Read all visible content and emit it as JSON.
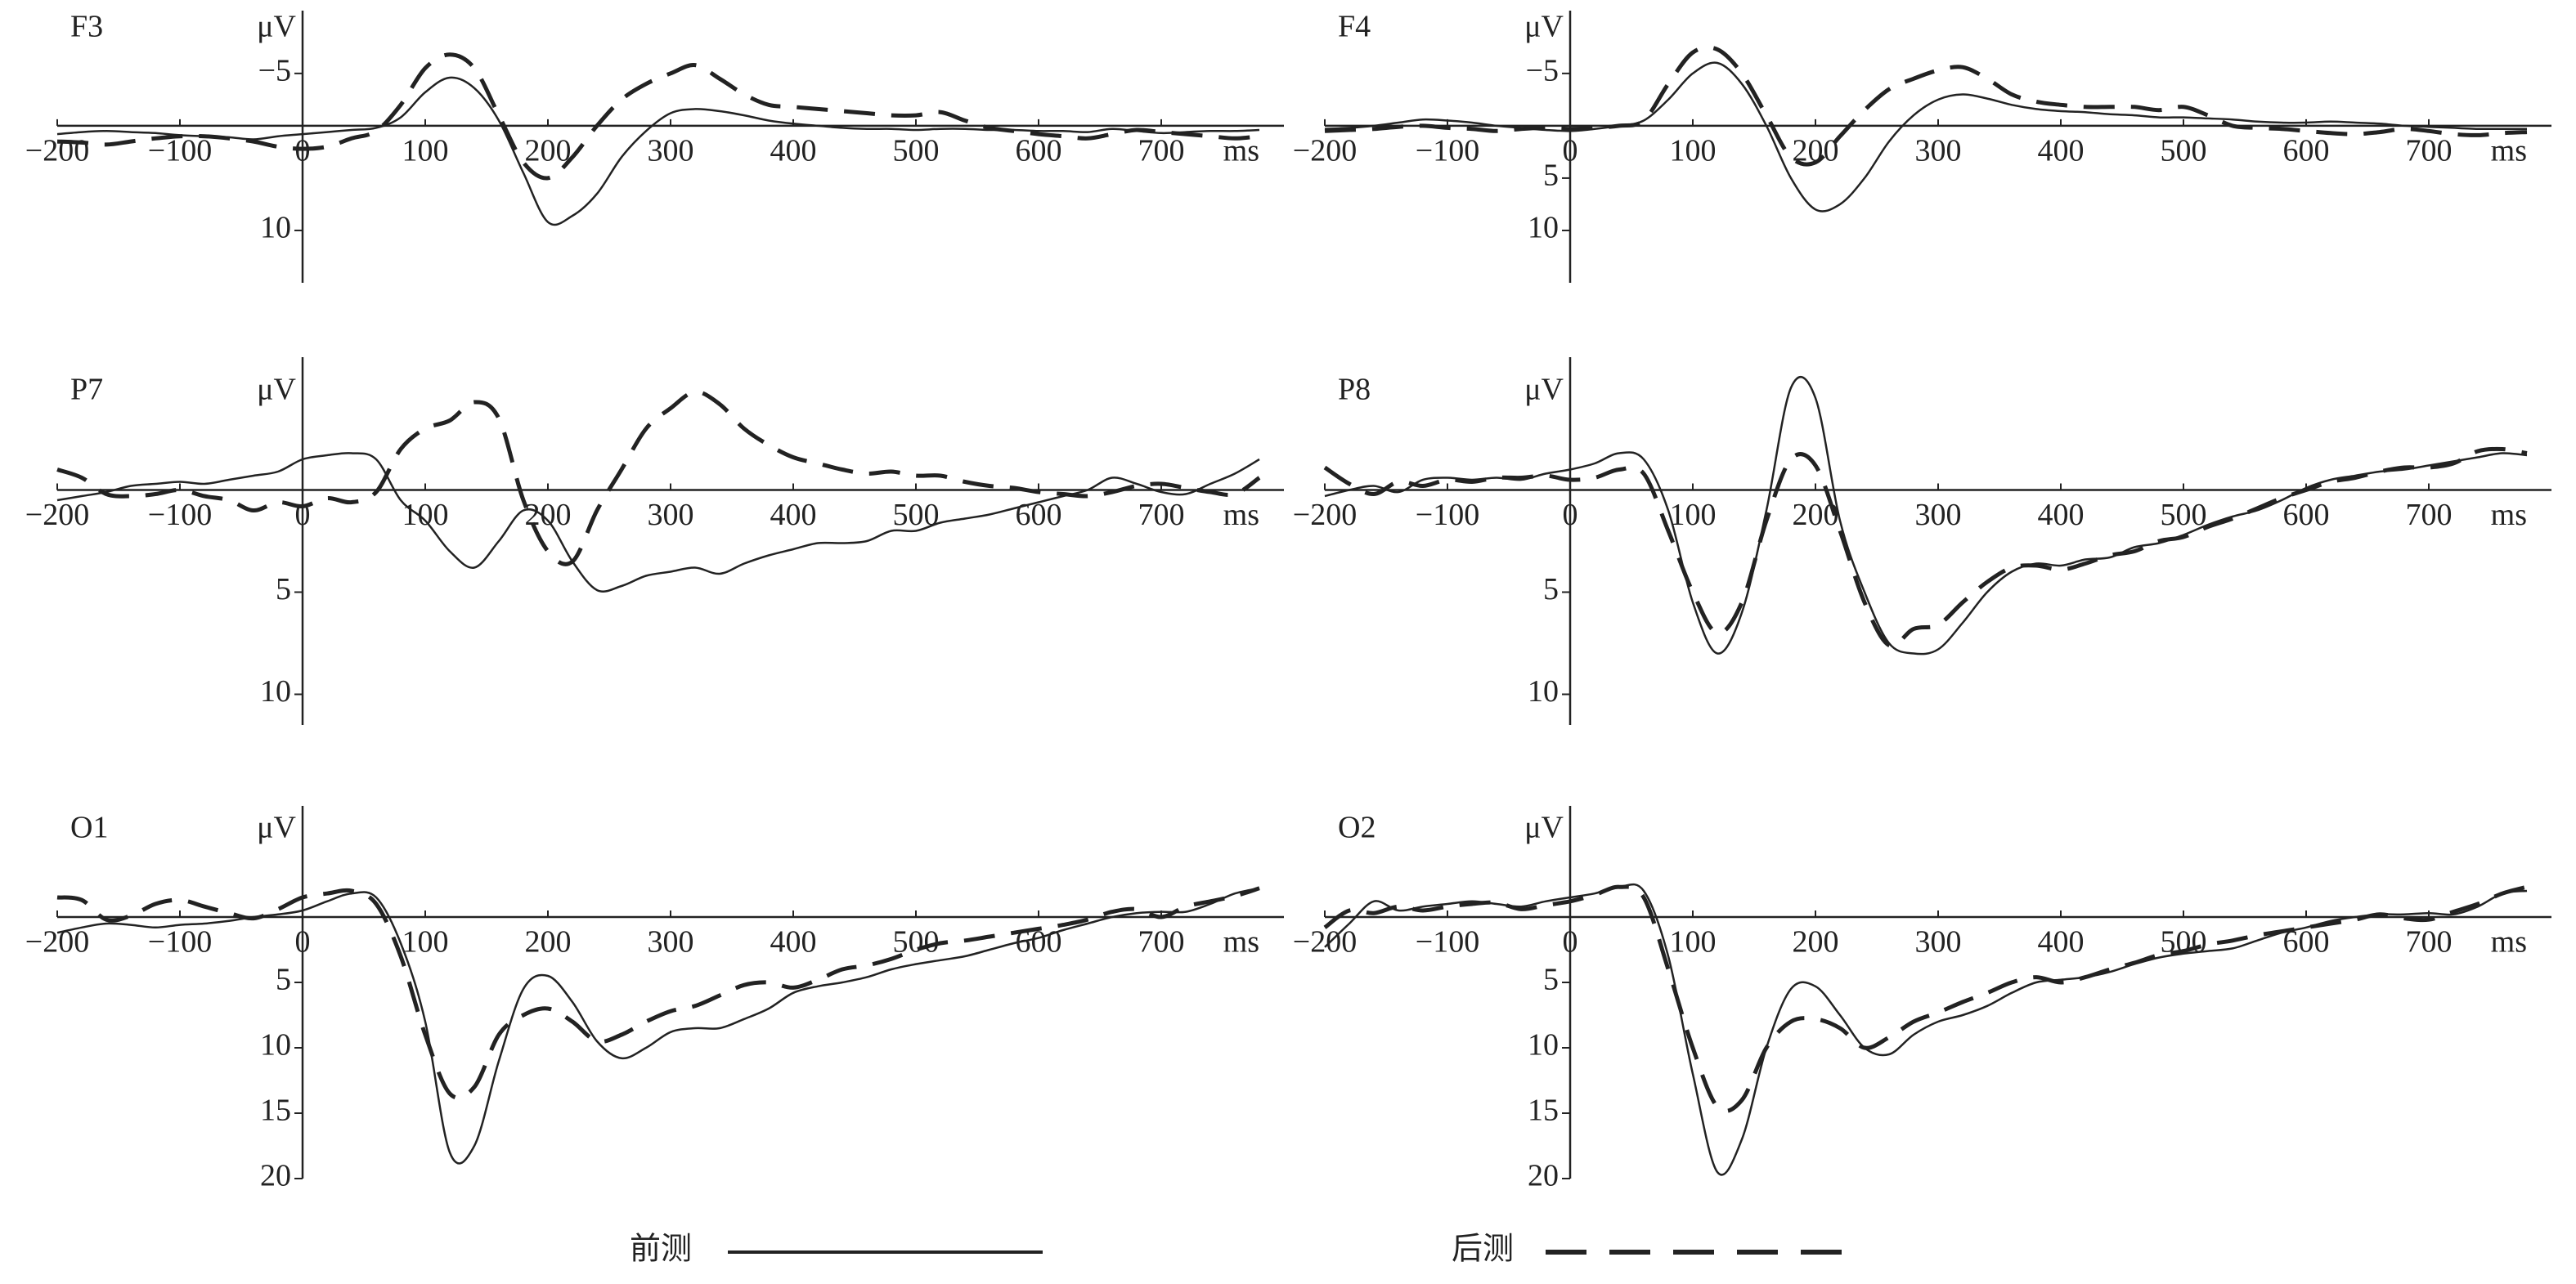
{
  "chart_data": [
    {
      "type": "line",
      "title": "F3",
      "y_label": "μV",
      "x_label": "ms",
      "y_reversed": true,
      "x": [
        -200,
        -180,
        -160,
        -140,
        -120,
        -100,
        -80,
        -60,
        -40,
        -20,
        0,
        20,
        40,
        60,
        80,
        100,
        120,
        140,
        160,
        180,
        200,
        220,
        240,
        260,
        280,
        300,
        320,
        340,
        360,
        380,
        400,
        420,
        440,
        460,
        480,
        500,
        520,
        540,
        560,
        580,
        600,
        620,
        640,
        660,
        680,
        700,
        720,
        740,
        760,
        780
      ],
      "xlim": [
        -200,
        800
      ],
      "xticks": [
        {
          "value": -200,
          "label": "−200"
        },
        {
          "value": -100,
          "label": "−100"
        },
        0,
        100,
        200,
        300,
        400,
        500,
        600,
        700
      ],
      "ylim": [
        -11,
        15
      ],
      "yticks": [
        {
          "value": -5,
          "label": "−5"
        },
        10
      ],
      "series": [
        {
          "name": "前测",
          "color": "#222222",
          "line_style": "solid",
          "values": [
            0.8,
            0.6,
            0.5,
            0.6,
            0.7,
            0.9,
            1.0,
            1.1,
            1.3,
            1.0,
            0.8,
            0.6,
            0.4,
            0.2,
            -0.8,
            -3.2,
            -4.6,
            -3.6,
            -0.5,
            4.5,
            9.2,
            8.6,
            6.5,
            3,
            0.5,
            -1.2,
            -1.6,
            -1.4,
            -1,
            -0.5,
            -0.2,
            0,
            0.2,
            0.3,
            0.3,
            0.4,
            0.3,
            0.3,
            0.4,
            0.4,
            0.5,
            0.5,
            0.6,
            0.3,
            0.5,
            0.7,
            0.6,
            0.5,
            0.5,
            0.4
          ]
        },
        {
          "name": "后测",
          "color": "#222222",
          "line_style": "dashed",
          "values": [
            1.5,
            1.6,
            1.8,
            1.5,
            1.2,
            1.0,
            1.0,
            1.2,
            1.5,
            2.0,
            2.2,
            2.0,
            1.2,
            0.5,
            -2,
            -5.5,
            -6.8,
            -5.5,
            -1,
            3.5,
            5,
            3,
            0,
            -2.5,
            -4,
            -5,
            -5.8,
            -4.5,
            -3,
            -2,
            -1.8,
            -1.6,
            -1.4,
            -1.2,
            -1,
            -1,
            -1.3,
            -0.5,
            0.2,
            0.5,
            0.8,
            1.0,
            1.2,
            0.8,
            0.4,
            0.6,
            0.8,
            1.0,
            1.2,
            1.0
          ]
        }
      ]
    },
    {
      "type": "line",
      "title": "F4",
      "y_label": "μV",
      "x_label": "ms",
      "y_reversed": true,
      "x": [
        -200,
        -180,
        -160,
        -140,
        -120,
        -100,
        -80,
        -60,
        -40,
        -20,
        0,
        20,
        40,
        60,
        80,
        100,
        120,
        140,
        160,
        180,
        200,
        220,
        240,
        260,
        280,
        300,
        320,
        340,
        360,
        380,
        400,
        420,
        440,
        460,
        480,
        500,
        520,
        540,
        560,
        580,
        600,
        620,
        640,
        660,
        680,
        700,
        720,
        740,
        760,
        780
      ],
      "xlim": [
        -200,
        800
      ],
      "xticks": [
        {
          "value": -200,
          "label": "−200"
        },
        {
          "value": -100,
          "label": "−100"
        },
        0,
        100,
        200,
        300,
        400,
        500,
        600,
        700
      ],
      "ylim": [
        -11,
        15
      ],
      "yticks": [
        {
          "value": -5,
          "label": "−5"
        },
        5,
        10
      ],
      "series": [
        {
          "name": "前测",
          "color": "#222222",
          "line_style": "solid",
          "values": [
            0.3,
            0.2,
            0,
            -0.3,
            -0.6,
            -0.5,
            -0.3,
            0,
            0.2,
            0.4,
            0.5,
            0.3,
            0.0,
            -0.5,
            -2.5,
            -5,
            -6,
            -4,
            0,
            5,
            8,
            7.5,
            5,
            1.5,
            -1,
            -2.5,
            -3,
            -2.6,
            -2,
            -1.6,
            -1.4,
            -1.3,
            -1.1,
            -1.0,
            -0.8,
            -0.8,
            -0.7,
            -0.6,
            -0.4,
            -0.3,
            -0.3,
            -0.4,
            -0.3,
            -0.2,
            0,
            0.1,
            0.2,
            0.3,
            0.3,
            0.3
          ]
        },
        {
          "name": "后测",
          "color": "#222222",
          "line_style": "dashed",
          "values": [
            0.5,
            0.4,
            0.3,
            0.1,
            0,
            0.2,
            0.3,
            0.5,
            0.3,
            0.2,
            0.3,
            0.2,
            0,
            -0.5,
            -4,
            -7,
            -7.3,
            -5,
            -1,
            3,
            3.5,
            1,
            -1.5,
            -3.5,
            -4.5,
            -5.3,
            -5.6,
            -4.5,
            -3,
            -2.3,
            -2,
            -1.8,
            -1.8,
            -1.8,
            -1.5,
            -1.8,
            -1,
            0,
            0.2,
            0.3,
            0.5,
            0.7,
            0.8,
            0.6,
            0.3,
            0.5,
            0.8,
            0.9,
            0.7,
            0.6
          ]
        }
      ]
    },
    {
      "type": "line",
      "title": "P7",
      "y_label": "μV",
      "x_label": "ms",
      "y_reversed": true,
      "x": [
        -200,
        -180,
        -160,
        -140,
        -120,
        -100,
        -80,
        -60,
        -40,
        -20,
        0,
        20,
        40,
        60,
        80,
        100,
        120,
        140,
        160,
        180,
        200,
        220,
        240,
        260,
        280,
        300,
        320,
        340,
        360,
        380,
        400,
        420,
        440,
        460,
        480,
        500,
        520,
        540,
        560,
        580,
        600,
        620,
        640,
        660,
        680,
        700,
        720,
        740,
        760,
        780
      ],
      "xlim": [
        -200,
        800
      ],
      "xticks": [
        {
          "value": -200,
          "label": "−200"
        },
        {
          "value": -100,
          "label": "−100"
        },
        0,
        100,
        200,
        300,
        400,
        500,
        600,
        700
      ],
      "ylim": [
        -6.5,
        11.5
      ],
      "yticks": [
        5,
        10
      ],
      "series": [
        {
          "name": "前测",
          "color": "#222222",
          "line_style": "solid",
          "values": [
            0.5,
            0.3,
            0.1,
            -0.2,
            -0.3,
            -0.4,
            -0.3,
            -0.5,
            -0.7,
            -0.9,
            -1.5,
            -1.7,
            -1.8,
            -1.5,
            0.5,
            1.5,
            3,
            3.8,
            2.5,
            1,
            1.5,
            3.5,
            4.9,
            4.7,
            4.2,
            4.0,
            3.8,
            4.1,
            3.6,
            3.2,
            2.9,
            2.6,
            2.6,
            2.5,
            2.0,
            2.0,
            1.6,
            1.4,
            1.2,
            0.9,
            0.6,
            0.3,
            0,
            -0.6,
            -0.3,
            0.1,
            0.2,
            -0.3,
            -0.8,
            -1.5
          ]
        },
        {
          "name": "后测",
          "color": "#222222",
          "line_style": "dashed",
          "values": [
            -1,
            -0.6,
            0.2,
            0.3,
            0.2,
            0,
            0.3,
            0.5,
            1,
            0.6,
            0.8,
            0.4,
            0.6,
            0.1,
            -2,
            -3,
            -3.4,
            -4.3,
            -3.5,
            0.5,
            3,
            3.5,
            1,
            -1,
            -3,
            -4,
            -4.8,
            -4.2,
            -3,
            -2.2,
            -1.6,
            -1.3,
            -1.0,
            -0.8,
            -0.9,
            -0.7,
            -0.7,
            -0.4,
            -0.2,
            -0.1,
            0.1,
            0.2,
            0.3,
            0.1,
            -0.2,
            -0.3,
            -0.1,
            0.1,
            0.2,
            -0.6
          ]
        }
      ]
    },
    {
      "type": "line",
      "title": "P8",
      "y_label": "μV",
      "x_label": "ms",
      "y_reversed": true,
      "x": [
        -200,
        -180,
        -160,
        -140,
        -120,
        -100,
        -80,
        -60,
        -40,
        -20,
        0,
        20,
        40,
        60,
        80,
        100,
        120,
        140,
        160,
        180,
        200,
        220,
        240,
        260,
        280,
        300,
        320,
        340,
        360,
        380,
        400,
        420,
        440,
        460,
        480,
        500,
        520,
        540,
        560,
        580,
        600,
        620,
        640,
        660,
        680,
        700,
        720,
        740,
        760,
        780
      ],
      "xlim": [
        -200,
        800
      ],
      "xticks": [
        {
          "value": -200,
          "label": "−200"
        },
        {
          "value": -100,
          "label": "−100"
        },
        0,
        100,
        200,
        300,
        400,
        500,
        600,
        700
      ],
      "ylim": [
        -6.5,
        11.5
      ],
      "yticks": [
        5,
        10
      ],
      "series": [
        {
          "name": "前测",
          "color": "#222222",
          "line_style": "solid",
          "values": [
            0.3,
            0,
            -0.2,
            0.1,
            -0.5,
            -0.6,
            -0.5,
            -0.6,
            -0.5,
            -0.8,
            -1,
            -1.3,
            -1.8,
            -1.5,
            1,
            5.5,
            8,
            6,
            1,
            -5,
            -4.5,
            1.5,
            5,
            7.5,
            8,
            7.8,
            6.5,
            5,
            4,
            3.6,
            3.7,
            3.4,
            3.3,
            2.8,
            2.6,
            2.2,
            1.7,
            1.3,
            1,
            0.5,
            -0.1,
            -0.5,
            -0.7,
            -0.9,
            -1.0,
            -1.2,
            -1.4,
            -1.6,
            -1.8,
            -1.7
          ]
        },
        {
          "name": "后测",
          "color": "#222222",
          "line_style": "dashed",
          "values": [
            -1.1,
            -0.3,
            0.2,
            -0.4,
            -0.2,
            -0.5,
            -0.4,
            -0.6,
            -0.6,
            -0.7,
            -0.5,
            -0.6,
            -1,
            -0.8,
            2,
            5,
            7,
            5.5,
            1.5,
            -1.5,
            -1.2,
            2,
            5.5,
            7.6,
            6.8,
            6.6,
            5.5,
            4.5,
            3.8,
            3.7,
            3.9,
            3.6,
            3.2,
            3.0,
            2.5,
            2.3,
            1.8,
            1.4,
            0.9,
            0.4,
            0,
            -0.4,
            -0.6,
            -0.9,
            -1.1,
            -1.1,
            -1.3,
            -1.9,
            -2,
            -1.8
          ]
        }
      ]
    },
    {
      "type": "line",
      "title": "O1",
      "y_label": "μV",
      "x_label": "ms",
      "y_reversed": true,
      "x": [
        -200,
        -180,
        -160,
        -140,
        -120,
        -100,
        -80,
        -60,
        -40,
        -20,
        0,
        20,
        40,
        60,
        80,
        100,
        120,
        140,
        160,
        180,
        200,
        220,
        240,
        260,
        280,
        300,
        320,
        340,
        360,
        380,
        400,
        420,
        440,
        460,
        480,
        500,
        520,
        540,
        560,
        580,
        600,
        620,
        640,
        660,
        680,
        700,
        720,
        740,
        760,
        780
      ],
      "xlim": [
        -200,
        800
      ],
      "xticks": [
        {
          "value": -200,
          "label": "−200"
        },
        {
          "value": -100,
          "label": "−100"
        },
        0,
        100,
        200,
        300,
        400,
        500,
        600,
        700
      ],
      "ylim": [
        -8.5,
        20
      ],
      "yticks": [
        5,
        10,
        15,
        20
      ],
      "series": [
        {
          "name": "前测",
          "color": "#222222",
          "line_style": "solid",
          "values": [
            1.2,
            0.8,
            0.5,
            0.6,
            0.8,
            0.6,
            0.5,
            0.3,
            0,
            -0.2,
            -0.5,
            -1.2,
            -1.8,
            -1.5,
            2,
            8,
            18,
            17.5,
            11,
            5.5,
            4.5,
            6.5,
            9.5,
            10.8,
            10,
            8.8,
            8.5,
            8.5,
            7.8,
            7,
            5.8,
            5.3,
            5,
            4.6,
            4.0,
            3.6,
            3.3,
            3.0,
            2.5,
            2.0,
            1.6,
            1.0,
            0.5,
            0,
            -0.3,
            -0.4,
            -0.4,
            -1,
            -1.8,
            -2.2
          ]
        },
        {
          "name": "后测",
          "color": "#222222",
          "line_style": "dashed",
          "values": [
            -1.5,
            -1.3,
            0.2,
            -0.1,
            -1.0,
            -1.3,
            -0.8,
            -0.3,
            0.1,
            -0.6,
            -1.5,
            -1.8,
            -2.0,
            -1,
            3,
            9,
            13.5,
            13,
            9,
            7.5,
            7,
            8,
            9.5,
            9,
            8,
            7.2,
            6.8,
            6,
            5.2,
            5,
            5.4,
            4.8,
            4,
            3.7,
            3.2,
            2.5,
            2.0,
            1.8,
            1.5,
            1.2,
            0.9,
            0.6,
            0.2,
            -0.4,
            -0.6,
            0,
            -0.8,
            -1.2,
            -1.6,
            -2.2
          ]
        }
      ]
    },
    {
      "type": "line",
      "title": "O2",
      "y_label": "μV",
      "x_label": "ms",
      "y_reversed": true,
      "x": [
        -200,
        -180,
        -160,
        -140,
        -120,
        -100,
        -80,
        -60,
        -40,
        -20,
        0,
        20,
        40,
        60,
        80,
        100,
        120,
        140,
        160,
        180,
        200,
        220,
        240,
        260,
        280,
        300,
        320,
        340,
        360,
        380,
        400,
        420,
        440,
        460,
        480,
        500,
        520,
        540,
        560,
        580,
        600,
        620,
        640,
        660,
        680,
        700,
        720,
        740,
        760,
        780
      ],
      "xlim": [
        -200,
        800
      ],
      "xticks": [
        {
          "value": -200,
          "label": "−200"
        },
        {
          "value": -100,
          "label": "−100"
        },
        0,
        100,
        200,
        300,
        400,
        500,
        600,
        700
      ],
      "ylim": [
        -8.5,
        20
      ],
      "yticks": [
        5,
        10,
        15,
        20
      ],
      "series": [
        {
          "name": "前测",
          "color": "#222222",
          "line_style": "solid",
          "values": [
            2.3,
            0.5,
            -1.2,
            -0.5,
            -0.8,
            -1,
            -1.2,
            -1,
            -0.8,
            -1.2,
            -1.5,
            -1.8,
            -2.3,
            -2,
            3,
            12,
            19.5,
            17,
            10,
            5.5,
            5.3,
            7.5,
            10,
            10.5,
            9,
            8,
            7.5,
            6.8,
            5.8,
            5,
            4.8,
            4.6,
            4.2,
            3.6,
            3.1,
            2.8,
            2.6,
            2.4,
            1.8,
            1.2,
            0.8,
            0.3,
            0,
            -0.2,
            -0.2,
            -0.3,
            -0.2,
            -0.8,
            -1.8,
            -2
          ]
        },
        {
          "name": "后测",
          "color": "#222222",
          "line_style": "dashed",
          "values": [
            0.8,
            -0.5,
            -0.3,
            -0.8,
            -0.5,
            -0.8,
            -1,
            -1.1,
            -0.6,
            -0.9,
            -1.2,
            -1.7,
            -2.3,
            -1.5,
            4,
            10,
            14.5,
            14,
            10,
            8,
            7.8,
            8.5,
            10,
            9.2,
            8,
            7.3,
            6.5,
            5.8,
            5.0,
            4.6,
            5.0,
            4.6,
            4.0,
            3.5,
            2.9,
            2.6,
            2.1,
            1.8,
            1.4,
            1.1,
            0.8,
            0.5,
            0.2,
            -0.2,
            0.1,
            0.2,
            -0.4,
            -1.0,
            -1.8,
            -2.3
          ]
        }
      ]
    }
  ]
}
